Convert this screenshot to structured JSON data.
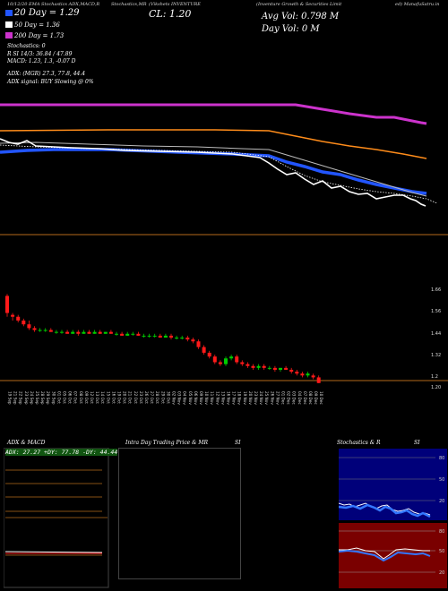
{
  "header": {
    "left": "10/12/20 EMA Stochastics ADX,MACD,R",
    "mid": "Stochastics,MR",
    "symbol": "(Vikshets INVENTURE",
    "right": "(Inventure Growth & Securities Limit",
    "right2": "ed) ManafuSatru.in"
  },
  "legend": {
    "ema20": "20 Day = 1.29",
    "ema50": "50 Day = 1.36",
    "ema200": "200 Day = 1.73",
    "close": "CL: 1.20",
    "avgvol": "Avg Vol: 0.798 M",
    "dayvol": "Day Vol: 0 M"
  },
  "indicators": {
    "stoch_title": "Stochastics: 0",
    "stoch_vals": "R                SI 14/3: 36.84 / 47.89",
    "macd": "MACD: 1.23, 1.3, -0.07 D",
    "adx": "ADX:                         (MGR) 27.3, 77.8, 44.4",
    "adx_signal": "ADX signal:                           BUY Slowing @ 0%"
  },
  "colors": {
    "ema20": "#ffffff",
    "ema50": "#2255ff",
    "ema200": "#cc33cc",
    "ema_orange": "#ff8c1a",
    "up": "#00cc00",
    "down": "#ff1a1a",
    "divider": "#b36a1a"
  },
  "price_axis": {
    "labels": [
      "1.66",
      "1.56",
      "1.44",
      "1.32",
      "1.2",
      "1.20"
    ]
  },
  "chart_data": {
    "type": "candlestick",
    "dates": [
      "19 Sep",
      "21 Sep",
      "22 Sep",
      "23 Sep",
      "24 Sep",
      "25 Sep",
      "28 Sep",
      "29 Sep",
      "30 Sep",
      "01 Oct",
      "05 Oct",
      "06 Oct",
      "07 Oct",
      "08 Oct",
      "09 Oct",
      "12 Oct",
      "13 Oct",
      "14 Oct",
      "15 Oct",
      "16 Oct",
      "19 Oct",
      "20 Oct",
      "21 Oct",
      "22 Oct",
      "23 Oct",
      "26 Oct",
      "27 Oct",
      "28 Oct",
      "29 Oct",
      "30 Oct",
      "02 Nov",
      "03 Nov",
      "04 Nov",
      "05 Nov",
      "06 Nov",
      "09 Nov",
      "10 Nov",
      "11 Nov",
      "12 Nov",
      "13 Nov",
      "16 Nov",
      "17 Nov",
      "18 Nov",
      "19 Nov",
      "20 Nov",
      "23 Nov",
      "24 Nov",
      "25 Nov",
      "26 Nov",
      "27 Nov",
      "01 Dec",
      "02 Dec",
      "03 Dec",
      "04 Dec",
      "07 Dec",
      "08 Dec",
      "09 Dec",
      "10 Dec"
    ],
    "ohlc": [
      [
        1.66,
        1.67,
        1.55,
        1.57
      ],
      [
        1.56,
        1.57,
        1.53,
        1.55
      ],
      [
        1.55,
        1.56,
        1.52,
        1.53
      ],
      [
        1.53,
        1.54,
        1.5,
        1.51
      ],
      [
        1.51,
        1.53,
        1.48,
        1.49
      ],
      [
        1.49,
        1.5,
        1.47,
        1.48
      ],
      [
        1.48,
        1.49,
        1.47,
        1.48
      ],
      [
        1.48,
        1.49,
        1.47,
        1.48
      ],
      [
        1.48,
        1.49,
        1.47,
        1.47
      ],
      [
        1.47,
        1.48,
        1.46,
        1.47
      ],
      [
        1.47,
        1.48,
        1.46,
        1.47
      ],
      [
        1.47,
        1.48,
        1.46,
        1.46
      ],
      [
        1.46,
        1.48,
        1.46,
        1.47
      ],
      [
        1.47,
        1.48,
        1.45,
        1.46
      ],
      [
        1.46,
        1.48,
        1.46,
        1.47
      ],
      [
        1.47,
        1.48,
        1.46,
        1.46
      ],
      [
        1.46,
        1.48,
        1.46,
        1.47
      ],
      [
        1.47,
        1.48,
        1.46,
        1.46
      ],
      [
        1.46,
        1.47,
        1.46,
        1.47
      ],
      [
        1.47,
        1.48,
        1.46,
        1.46
      ],
      [
        1.46,
        1.47,
        1.45,
        1.46
      ],
      [
        1.46,
        1.47,
        1.45,
        1.45
      ],
      [
        1.45,
        1.47,
        1.45,
        1.46
      ],
      [
        1.46,
        1.47,
        1.45,
        1.46
      ],
      [
        1.46,
        1.47,
        1.45,
        1.45
      ],
      [
        1.45,
        1.46,
        1.44,
        1.45
      ],
      [
        1.45,
        1.46,
        1.44,
        1.45
      ],
      [
        1.45,
        1.46,
        1.44,
        1.45
      ],
      [
        1.45,
        1.46,
        1.44,
        1.44
      ],
      [
        1.44,
        1.46,
        1.44,
        1.45
      ],
      [
        1.45,
        1.46,
        1.43,
        1.44
      ],
      [
        1.44,
        1.45,
        1.43,
        1.44
      ],
      [
        1.44,
        1.45,
        1.43,
        1.44
      ],
      [
        1.44,
        1.45,
        1.42,
        1.43
      ],
      [
        1.43,
        1.44,
        1.41,
        1.42
      ],
      [
        1.42,
        1.43,
        1.38,
        1.39
      ],
      [
        1.39,
        1.4,
        1.35,
        1.36
      ],
      [
        1.36,
        1.37,
        1.33,
        1.34
      ],
      [
        1.34,
        1.35,
        1.3,
        1.31
      ],
      [
        1.31,
        1.32,
        1.29,
        1.3
      ],
      [
        1.3,
        1.34,
        1.29,
        1.33
      ],
      [
        1.33,
        1.35,
        1.32,
        1.34
      ],
      [
        1.34,
        1.35,
        1.3,
        1.31
      ],
      [
        1.31,
        1.32,
        1.29,
        1.3
      ],
      [
        1.3,
        1.31,
        1.28,
        1.29
      ],
      [
        1.29,
        1.3,
        1.27,
        1.28
      ],
      [
        1.28,
        1.3,
        1.27,
        1.29
      ],
      [
        1.29,
        1.3,
        1.27,
        1.28
      ],
      [
        1.28,
        1.29,
        1.27,
        1.28
      ],
      [
        1.28,
        1.29,
        1.26,
        1.27
      ],
      [
        1.27,
        1.28,
        1.26,
        1.28
      ],
      [
        1.28,
        1.29,
        1.27,
        1.27
      ],
      [
        1.27,
        1.28,
        1.25,
        1.26
      ],
      [
        1.26,
        1.27,
        1.24,
        1.25
      ],
      [
        1.25,
        1.26,
        1.23,
        1.24
      ],
      [
        1.24,
        1.26,
        1.23,
        1.25
      ],
      [
        1.24,
        1.25,
        1.22,
        1.23
      ],
      [
        1.23,
        1.24,
        1.2,
        1.2
      ]
    ],
    "ylim": [
      1.18,
      1.7
    ]
  },
  "panels": {
    "adx": {
      "title": "ADX  & MACD",
      "legend": "ADX: 27.27  +DY: 77.78  -DY: 44.44"
    },
    "mr": {
      "title": "Intra  Day Trading Price  & MR",
      "right": "SI"
    },
    "stoch": {
      "title": "Stochastics & R",
      "right": "SI",
      "upper_labels": [
        "80",
        "50",
        "20"
      ],
      "lower_labels": [
        "80",
        "50",
        "20"
      ]
    }
  }
}
